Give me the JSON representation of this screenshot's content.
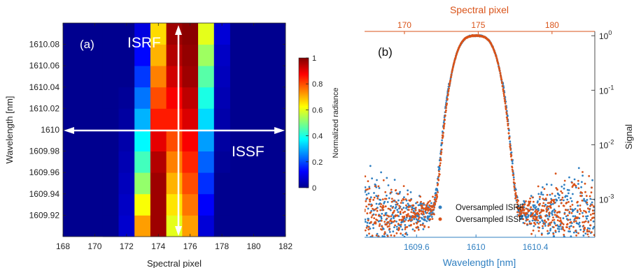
{
  "chart_data": [
    {
      "type": "heatmap",
      "panel_label": "(a)",
      "xlabel": "Spectral pixel",
      "ylabel": "Wavelength [nm]",
      "xlim": [
        168,
        182
      ],
      "ylim": [
        1609.9,
        1610.1
      ],
      "x_ticks": [
        "168",
        "170",
        "172",
        "174",
        "176",
        "178",
        "180",
        "182"
      ],
      "y_ticks": [
        "1609.92",
        "1609.94",
        "1609.96",
        "1609.98",
        "1610",
        "1610.02",
        "1610.04",
        "1610.06",
        "1610.08"
      ],
      "columns": [
        {
          "pixel": 171,
          "v": [
            0.0,
            0.0,
            0.0,
            0.0,
            0.0,
            0.0,
            0.0,
            0.0,
            0.0,
            0.0
          ]
        },
        {
          "pixel": 172,
          "v": [
            0.07,
            0.06,
            0.05,
            0.04,
            0.03,
            0.02,
            0.01,
            0.0,
            0.0,
            0.0
          ]
        },
        {
          "pixel": 173,
          "v": [
            0.72,
            0.62,
            0.52,
            0.44,
            0.37,
            0.3,
            0.24,
            0.18,
            0.13,
            0.09
          ]
        },
        {
          "pixel": 174,
          "v": [
            0.97,
            0.97,
            0.97,
            0.95,
            0.9,
            0.85,
            0.8,
            0.75,
            0.7,
            0.66
          ]
        },
        {
          "pixel": 175,
          "v": [
            0.6,
            0.65,
            0.7,
            0.75,
            0.8,
            0.85,
            0.88,
            0.92,
            0.95,
            0.97
          ]
        },
        {
          "pixel": 176,
          "v": [
            0.72,
            0.76,
            0.8,
            0.84,
            0.88,
            0.91,
            0.94,
            0.97,
            0.98,
            0.99
          ]
        },
        {
          "pixel": 177,
          "v": [
            0.08,
            0.12,
            0.17,
            0.22,
            0.28,
            0.34,
            0.4,
            0.46,
            0.53,
            0.6
          ]
        },
        {
          "pixel": 178,
          "v": [
            0.0,
            0.0,
            0.0,
            0.01,
            0.02,
            0.03,
            0.04,
            0.05,
            0.06,
            0.08
          ]
        }
      ],
      "colorbar": {
        "label": "Normalized radiance",
        "ticks": [
          "0",
          "0.2",
          "0.4",
          "0.6",
          "0.8",
          "1"
        ]
      },
      "annotations": {
        "vertical": "ISRF",
        "horizontal": "ISSF"
      },
      "colors": {
        "background": "#00008f",
        "arrow": "#ffffff"
      }
    },
    {
      "type": "scatter",
      "panel_label": "(b)",
      "xlabel": "Wavelength [nm]",
      "x_ticks": [
        "1609.6",
        "1610",
        "1610.4"
      ],
      "xlim": [
        1609.25,
        1610.8
      ],
      "x2label": "Spectral pixel",
      "x2_ticks": [
        "170",
        "175",
        "180"
      ],
      "x2lim": [
        167.3,
        182.9
      ],
      "ylabel": "Signal",
      "y_scale": "log",
      "ylim": [
        0.0002,
        1.2
      ],
      "y_ticks": [
        {
          "base": "10",
          "exp": "0"
        },
        {
          "base": "10",
          "exp": "-1"
        },
        {
          "base": "10",
          "exp": "-2"
        },
        {
          "base": "10",
          "exp": "-3"
        }
      ],
      "legend": {
        "position": "bottom-center"
      },
      "series": [
        {
          "name": "Oversampled ISRF",
          "color": "#2f7fc1"
        },
        {
          "name": "Oversampled ISSF",
          "color": "#d95319"
        }
      ],
      "core": {
        "center": 1610.0,
        "sigma": 0.1
      },
      "wing": {
        "amplitude": 0.1,
        "scale": 0.042
      },
      "floor": 0.0012
    }
  ]
}
